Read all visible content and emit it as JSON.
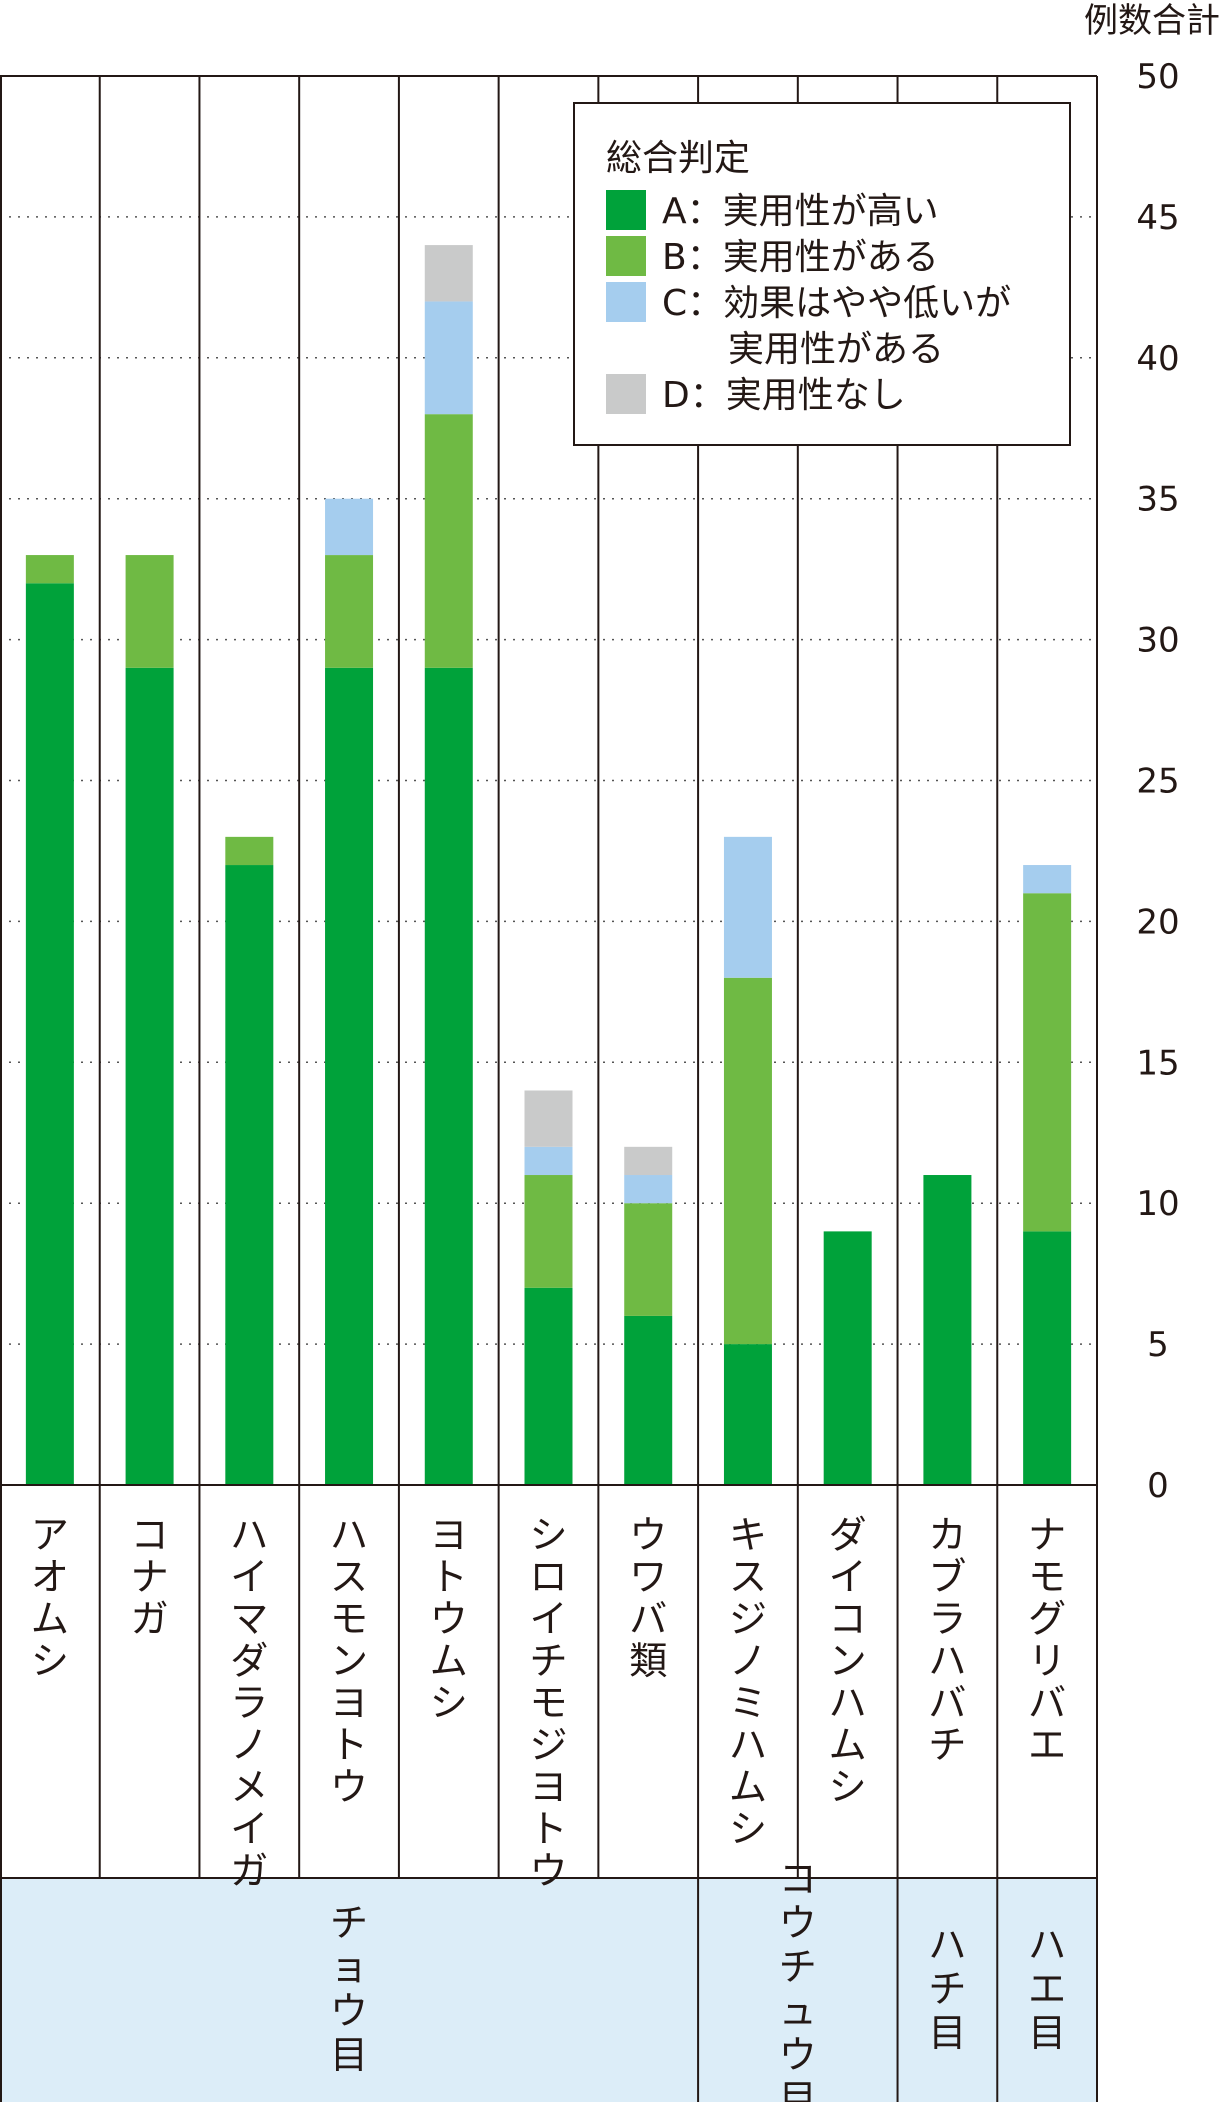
{
  "chart_data": {
    "type": "bar",
    "stacked": true,
    "ylabel": "例数合計",
    "ylim": [
      0,
      50
    ],
    "yticks": [
      0,
      5,
      10,
      15,
      20,
      25,
      30,
      35,
      40,
      45,
      50
    ],
    "grid": true,
    "legend_position": "top-right",
    "categories": [
      "アオムシ",
      "コナガ",
      "ハイマダラノメイガ",
      "ハスモンヨトウ",
      "ヨトウムシ",
      "シロイチモジヨトウ",
      "ウワバ類",
      "キスジノミハムシ",
      "ダイコンハムシ",
      "カブラハバチ",
      "ナモグリバエ"
    ],
    "series": [
      {
        "name": "A：実用性が高い",
        "color": "#00a23a",
        "values": [
          32,
          29,
          22,
          29,
          29,
          7,
          6,
          5,
          9,
          11,
          9
        ]
      },
      {
        "name": "B：実用性がある",
        "color": "#6fba44",
        "values": [
          1,
          4,
          1,
          4,
          9,
          4,
          4,
          13,
          0,
          0,
          12
        ]
      },
      {
        "name": "C：効果はやや低いが実用性がある",
        "color": "#a5cdee",
        "values": [
          0,
          0,
          0,
          2,
          4,
          1,
          1,
          5,
          0,
          0,
          1
        ]
      },
      {
        "name": "D：実用性なし",
        "color": "#c9caca",
        "values": [
          0,
          0,
          0,
          0,
          2,
          2,
          1,
          0,
          0,
          0,
          0
        ]
      }
    ],
    "legend": {
      "title": "総合判定",
      "items": [
        {
          "lines": [
            "A：実用性が高い"
          ],
          "color": "#00a23a"
        },
        {
          "lines": [
            "B：実用性がある"
          ],
          "color": "#6fba44"
        },
        {
          "lines": [
            "C：効果はやや低いが",
            "実用性がある"
          ],
          "color": "#a5cdee"
        },
        {
          "lines": [
            "D：実用性なし"
          ],
          "color": "#c9caca"
        }
      ]
    },
    "groups": [
      {
        "label": "チョウ目",
        "start": 0,
        "end": 6
      },
      {
        "label": "コウチュウ目",
        "start": 7,
        "end": 8
      },
      {
        "label": "ハチ目",
        "start": 9,
        "end": 9
      },
      {
        "label": "ハエ目",
        "start": 10,
        "end": 10
      }
    ],
    "group_band_color": "#dcedf8"
  }
}
